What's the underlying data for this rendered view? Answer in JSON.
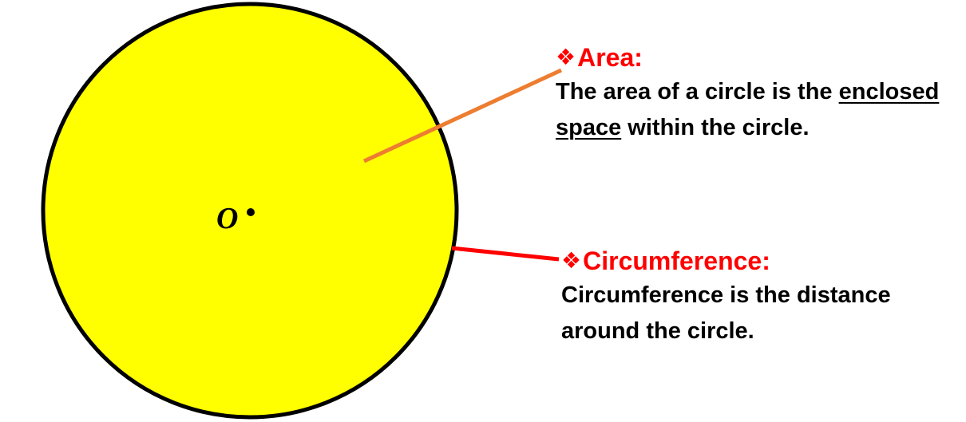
{
  "colors": {
    "circle_fill": "#ffff00",
    "circle_stroke": "#000000",
    "heading": "#ff0000",
    "area_pointer": "#ed7d31",
    "circumference_pointer": "#ff0000",
    "text": "#000000"
  },
  "diagram": {
    "center_label": "O",
    "bullet_icon": "❖",
    "area": {
      "heading": "Area:",
      "text_before": "The area of a circle is the",
      "text_underlined": "enclosed space",
      "text_after": "within the circle."
    },
    "circumference": {
      "heading": "Circumference:",
      "text": "Circumference is the distance around the circle."
    }
  }
}
